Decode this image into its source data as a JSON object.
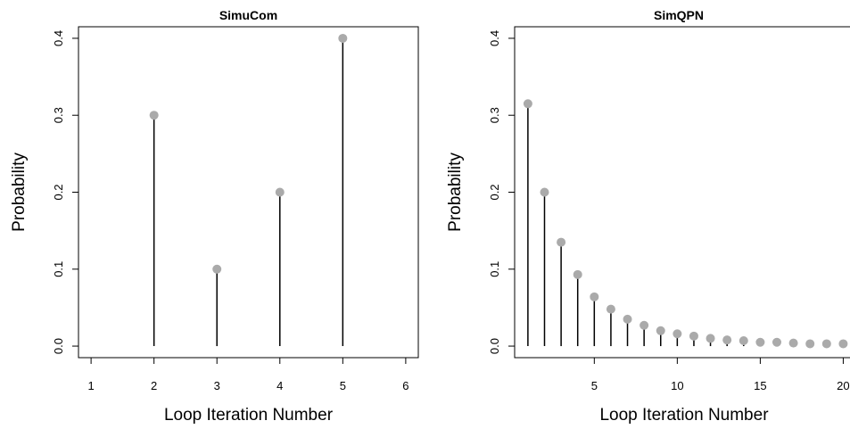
{
  "chart_data": [
    {
      "type": "scatter",
      "style": "lollipop",
      "title": "SimuCom",
      "xlabel": "Loop Iteration Number",
      "ylabel": "Probability",
      "xlim": [
        0.8,
        6.2
      ],
      "ylim": [
        -0.015,
        0.415
      ],
      "xticks": [
        1,
        2,
        3,
        4,
        5,
        6
      ],
      "yticks": [
        0.0,
        0.1,
        0.2,
        0.3,
        0.4
      ],
      "x": [
        2,
        3,
        4,
        5
      ],
      "y": [
        0.3,
        0.1,
        0.2,
        0.4
      ],
      "point_color": "#aaaaaa",
      "stem_color": "#000000",
      "grid": false,
      "box": true
    },
    {
      "type": "scatter",
      "style": "lollipop",
      "title": "SimQPN",
      "xlabel": "Loop Iteration Number",
      "ylabel": "Probability",
      "xlim": [
        0.2,
        20.3
      ],
      "ylim": [
        -0.015,
        0.415
      ],
      "xticks": [
        5,
        10,
        15,
        20
      ],
      "yticks": [
        0.0,
        0.1,
        0.2,
        0.3,
        0.4
      ],
      "x": [
        1,
        2,
        3,
        4,
        5,
        6,
        7,
        8,
        9,
        10,
        11,
        12,
        13,
        14,
        15,
        16,
        17,
        18,
        19,
        20
      ],
      "y": [
        0.315,
        0.2,
        0.135,
        0.093,
        0.064,
        0.048,
        0.035,
        0.027,
        0.02,
        0.016,
        0.013,
        0.01,
        0.008,
        0.007,
        0.005,
        0.005,
        0.004,
        0.003,
        0.003,
        0.003
      ],
      "point_color": "#aaaaaa",
      "stem_color": "#000000",
      "grid": false,
      "box": "partial-open-right"
    }
  ]
}
